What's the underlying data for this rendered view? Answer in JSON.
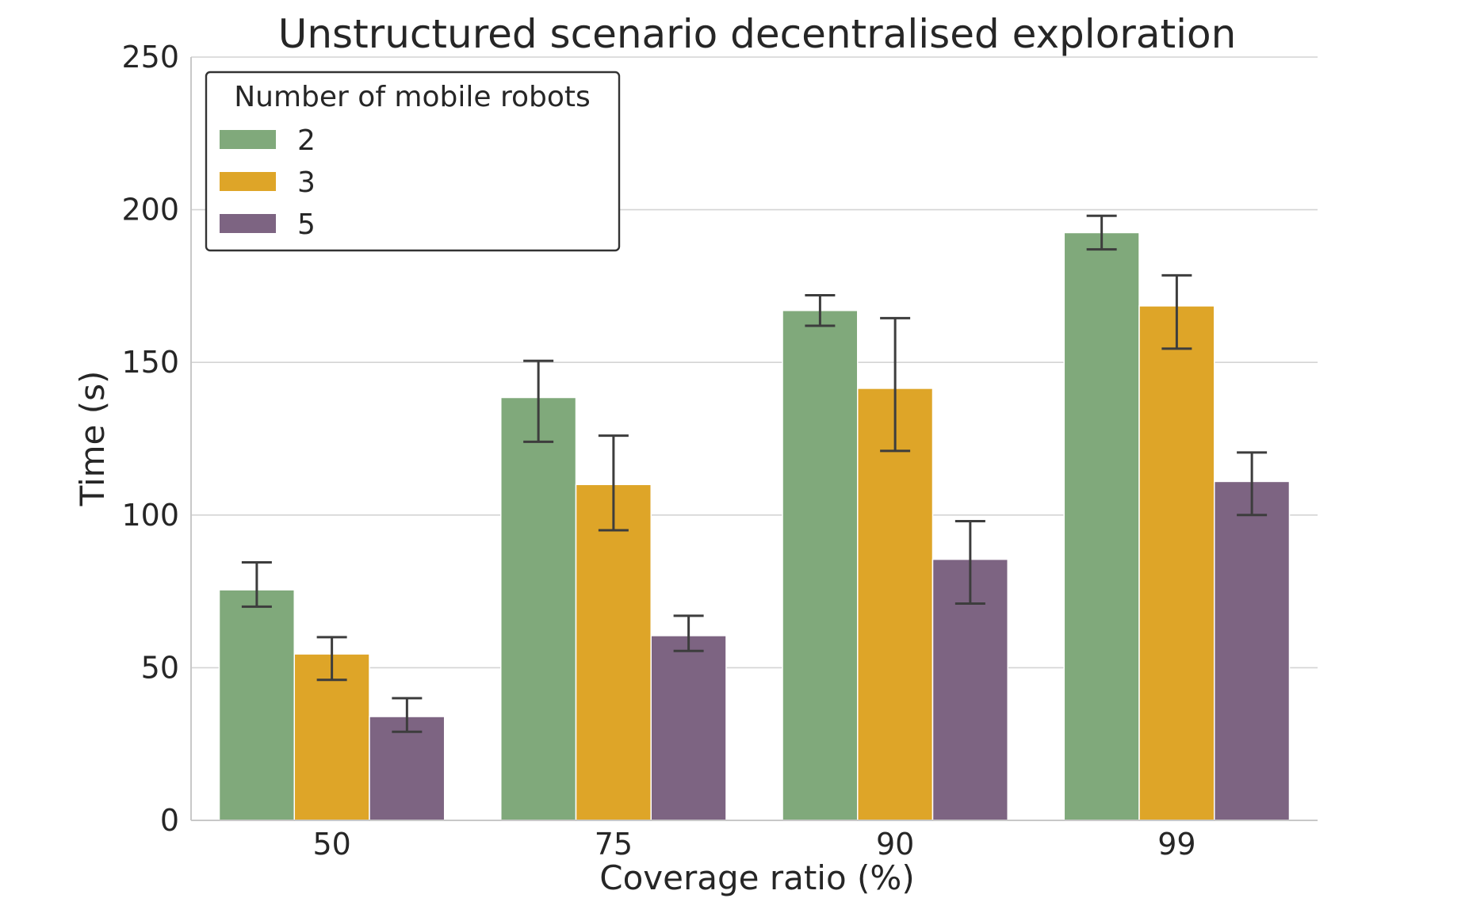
{
  "chart_data": {
    "type": "bar",
    "title": "Unstructured scenario decentralised exploration",
    "xlabel": "Coverage ratio (%)",
    "ylabel": "Time (s)",
    "categories": [
      "50",
      "75",
      "90",
      "99"
    ],
    "ylim": [
      0,
      250
    ],
    "yticks": [
      "0",
      "50",
      "100",
      "150",
      "200",
      "250"
    ],
    "grid": "horizontal",
    "legend": {
      "title": "Number of mobile robots",
      "placement": "top-left"
    },
    "series": [
      {
        "name": "2",
        "color": "#80a97b",
        "values": [
          75.5,
          138.5,
          167,
          192.5
        ],
        "err_low": [
          70,
          124,
          162,
          187
        ],
        "err_high": [
          84.5,
          150.5,
          172,
          198
        ]
      },
      {
        "name": "3",
        "color": "#dea528",
        "values": [
          54.5,
          110,
          141.5,
          168.5
        ],
        "err_low": [
          46,
          95,
          121,
          154.5
        ],
        "err_high": [
          60,
          126,
          164.5,
          178.5
        ]
      },
      {
        "name": "5",
        "color": "#7d6482",
        "values": [
          34,
          60.5,
          85.5,
          111
        ],
        "err_low": [
          29,
          55.5,
          71,
          100
        ],
        "err_high": [
          40,
          67,
          98,
          120.5
        ]
      }
    ]
  }
}
